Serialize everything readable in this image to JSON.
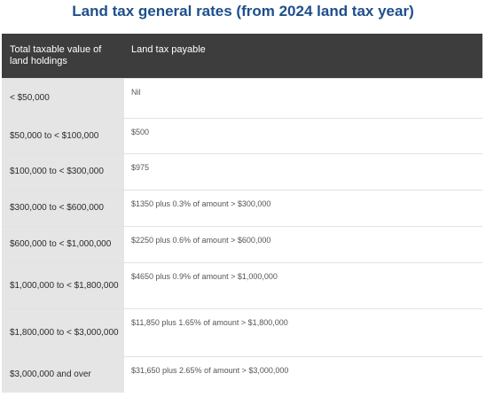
{
  "title": "Land tax general rates (from 2024 land tax year)",
  "table": {
    "headers": [
      "Total taxable value of land holdings",
      "Land tax payable"
    ],
    "rows": [
      {
        "range": "< $50,000",
        "tax": "Nil"
      },
      {
        "range": "$50,000 to < $100,000",
        "tax": "$500"
      },
      {
        "range": "$100,000 to < $300,000",
        "tax": "$975"
      },
      {
        "range": "$300,000 to < $600,000",
        "tax": "$1350 plus 0.3% of amount > $300,000"
      },
      {
        "range": "$600,000 to < $1,000,000",
        "tax": "$2250 plus 0.6% of amount > $600,000"
      },
      {
        "range": "$1,000,000 to < $1,800,000",
        "tax": "$4650 plus 0.9% of amount > $1,000,000"
      },
      {
        "range": "$1,800,000 to < $3,000,000",
        "tax": "$11,850 plus 1.65% of amount > $1,800,000"
      },
      {
        "range": "$3,000,000 and over",
        "tax": "$31,650 plus 2.65% of amount > $3,000,000"
      }
    ]
  }
}
